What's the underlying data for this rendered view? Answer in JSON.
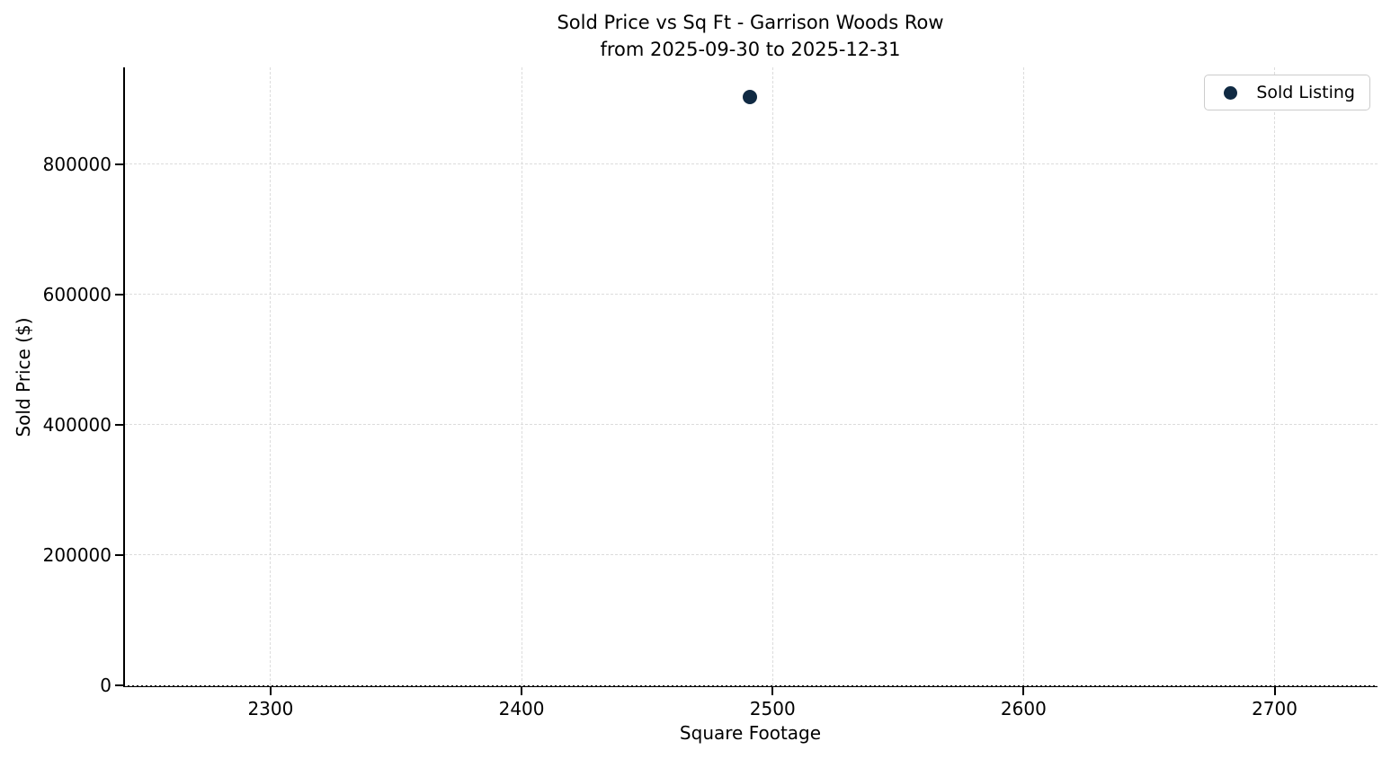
{
  "figure": {
    "background": "#ffffff",
    "text_color": "#000000",
    "spine_color": "#000000"
  },
  "chart_data": {
    "type": "scatter",
    "title_lines": [
      "Sold Price vs Sq Ft - Garrison Woods Row",
      "from 2025-09-30 to 2025-12-31"
    ],
    "xlabel": "Square Footage",
    "ylabel": "Sold Price ($)",
    "xlim": [
      2242,
      2741
    ],
    "ylim": [
      0,
      948150
    ],
    "x_ticks": [
      2300,
      2400,
      2500,
      2600,
      2700
    ],
    "y_ticks": [
      0,
      200000,
      400000,
      600000,
      800000
    ],
    "grid": true,
    "grid_axis": "both",
    "grid_style": "dashed",
    "grid_color": "#dcdcdc",
    "legend": {
      "location": "upper right",
      "entries": [
        {
          "label": "Sold Listing",
          "marker": "circle",
          "color": "#102a43"
        }
      ]
    },
    "series": [
      {
        "name": "Sold Listing",
        "color": "#102a43",
        "marker": "circle",
        "points": [
          {
            "sqft": 2491,
            "sold_price": 903000
          }
        ]
      }
    ]
  }
}
